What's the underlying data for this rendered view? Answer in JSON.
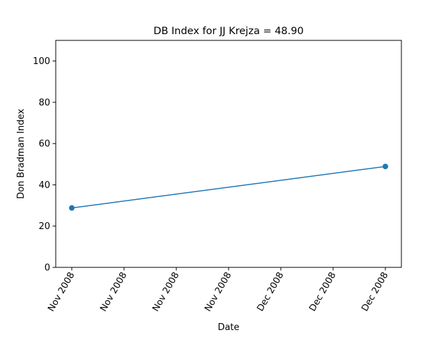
{
  "chart_data": {
    "type": "line",
    "title": "DB Index for JJ Krejza = 48.90",
    "xlabel": "Date",
    "ylabel": "Don Bradman Index",
    "x_tick_labels": [
      "Nov 2008",
      "Nov 2008",
      "Nov 2008",
      "Nov 2008",
      "Dec 2008",
      "Dec 2008",
      "Dec 2008"
    ],
    "y_ticks": [
      0,
      20,
      40,
      60,
      80,
      100
    ],
    "ylim": [
      0,
      110
    ],
    "grid": false,
    "series": [
      {
        "color": "#1f77b4",
        "points": [
          {
            "x": "2008-11-06",
            "y": 28.8
          },
          {
            "x": "2008-12-17",
            "y": 48.9
          }
        ]
      }
    ]
  }
}
